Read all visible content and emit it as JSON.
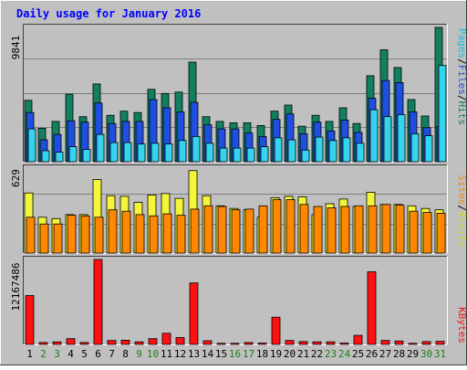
{
  "chart_data": [
    {
      "type": "bar",
      "title": "Daily usage for January 2016",
      "ylabel_parts": [
        "Pages",
        "/",
        "Files",
        "/",
        "Hits"
      ],
      "ymax_label": "9841",
      "ylim": [
        0,
        9841
      ],
      "categories": [
        "1",
        "2",
        "3",
        "4",
        "5",
        "6",
        "7",
        "8",
        "9",
        "10",
        "11",
        "12",
        "13",
        "14",
        "15",
        "16",
        "17",
        "18",
        "19",
        "20",
        "21",
        "22",
        "23",
        "24",
        "25",
        "26",
        "27",
        "28",
        "29",
        "30",
        "31"
      ],
      "series": [
        {
          "name": "Hits",
          "color": "#128060",
          "values": [
            4500,
            2450,
            2950,
            4950,
            3300,
            5700,
            3400,
            3700,
            3600,
            5300,
            5000,
            5100,
            7300,
            3300,
            2950,
            2850,
            2850,
            2650,
            3700,
            4150,
            2600,
            3400,
            2950,
            3950,
            2800,
            6300,
            8200,
            6900,
            4550,
            3350,
            9841
          ]
        },
        {
          "name": "Files",
          "color": "#1f4fe0",
          "values": [
            3600,
            1600,
            2000,
            3000,
            2900,
            4300,
            2800,
            2950,
            2950,
            4550,
            3950,
            3650,
            4350,
            2700,
            2400,
            2400,
            2100,
            1850,
            3100,
            3500,
            2050,
            2900,
            2250,
            3050,
            2150,
            4650,
            5950,
            5800,
            3650,
            2500,
            2600
          ]
        },
        {
          "name": "Pages",
          "color": "#34d4ee",
          "values": [
            2400,
            800,
            700,
            1100,
            900,
            2000,
            1400,
            1400,
            1300,
            1350,
            1300,
            1550,
            1850,
            1350,
            1000,
            1000,
            1000,
            1100,
            1750,
            1600,
            850,
            1800,
            1550,
            1750,
            1350,
            3800,
            3300,
            3450,
            2050,
            1900,
            7050
          ]
        }
      ]
    },
    {
      "type": "bar",
      "ylabel_parts": [
        "Sites",
        "/",
        "Visits"
      ],
      "ymax_label": "629",
      "ylim": [
        0,
        629
      ],
      "categories": [
        "1",
        "2",
        "3",
        "4",
        "5",
        "6",
        "7",
        "8",
        "9",
        "10",
        "11",
        "12",
        "13",
        "14",
        "15",
        "16",
        "17",
        "18",
        "19",
        "20",
        "21",
        "22",
        "23",
        "24",
        "25",
        "26",
        "27",
        "28",
        "29",
        "30",
        "31"
      ],
      "series": [
        {
          "name": "Visits",
          "color": "#f5f53a",
          "values": [
            445,
            265,
            255,
            285,
            285,
            545,
            425,
            420,
            375,
            430,
            440,
            405,
            610,
            425,
            350,
            330,
            320,
            265,
            410,
            420,
            415,
            285,
            365,
            400,
            345,
            450,
            360,
            360,
            350,
            330,
            320
          ]
        },
        {
          "name": "Sites",
          "color": "#ff8800",
          "values": [
            265,
            215,
            215,
            280,
            275,
            265,
            320,
            310,
            285,
            275,
            290,
            280,
            325,
            350,
            345,
            320,
            325,
            350,
            395,
            395,
            360,
            345,
            335,
            345,
            350,
            350,
            360,
            355,
            310,
            300,
            295
          ]
        }
      ]
    },
    {
      "type": "bar",
      "ylabel_parts": [
        "KBytes"
      ],
      "ymax_label": "12167486",
      "ylim": [
        0,
        12167486
      ],
      "categories": [
        "1",
        "2",
        "3",
        "4",
        "5",
        "6",
        "7",
        "8",
        "9",
        "10",
        "11",
        "12",
        "13",
        "14",
        "15",
        "16",
        "17",
        "18",
        "19",
        "20",
        "21",
        "22",
        "23",
        "24",
        "25",
        "26",
        "27",
        "28",
        "29",
        "30",
        "31"
      ],
      "series": [
        {
          "name": "KBytes",
          "color": "#ff1010",
          "values": [
            7000000,
            280000,
            360000,
            820000,
            280000,
            12167486,
            560000,
            600000,
            360000,
            820000,
            1600000,
            980000,
            8800000,
            520000,
            160000,
            160000,
            280000,
            200000,
            3900000,
            560000,
            400000,
            360000,
            360000,
            200000,
            1300000,
            10400000,
            560000,
            480000,
            160000,
            400000,
            440000
          ]
        }
      ]
    }
  ],
  "x_axis": {
    "weekday_color": "#000000",
    "weekend_color": "#1b7f1b",
    "weekend_days": [
      "2",
      "3",
      "9",
      "10",
      "16",
      "17",
      "23",
      "24",
      "30",
      "31"
    ]
  },
  "colors": {
    "background": "#c0c0c0",
    "plot_area": "#c0c0c0",
    "gridline": "#808080",
    "title": "#0000ff"
  }
}
